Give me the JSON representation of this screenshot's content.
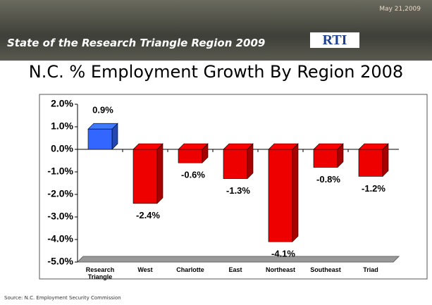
{
  "slide": {
    "banner_title": "State of the Research Triangle Region 2009",
    "date": "May 21,2009",
    "logo": "RTI"
  },
  "chart_data": {
    "type": "bar",
    "title": "N.C. % Employment Growth By Region 2008",
    "categories": [
      "Research Triangle",
      "West",
      "Charlotte",
      "East",
      "Northeast",
      "Southeast",
      "Triad"
    ],
    "values": [
      0.9,
      -2.4,
      -0.6,
      -1.3,
      -4.1,
      -0.8,
      -1.2
    ],
    "value_labels": [
      "0.9%",
      "-2.4%",
      "-0.6%",
      "-1.3%",
      "-4.1%",
      "-0.8%",
      "-1.2%"
    ],
    "colors": [
      "#3366ff",
      "#ee0000",
      "#ee0000",
      "#ee0000",
      "#ee0000",
      "#ee0000",
      "#ee0000"
    ],
    "ylim": [
      -5,
      2
    ],
    "yticks": [
      {
        "value": 2,
        "label": "2.0%"
      },
      {
        "value": 1,
        "label": "1.0%"
      },
      {
        "value": 0,
        "label": "0.0%"
      },
      {
        "value": -1,
        "label": "-1.0%"
      },
      {
        "value": -2,
        "label": "-2.0%"
      },
      {
        "value": -3,
        "label": "-3.0%"
      },
      {
        "value": -4,
        "label": "-4.0%"
      },
      {
        "value": -5,
        "label": "-5.0%"
      }
    ],
    "grid": false,
    "source": "Source: N.C. Employment Security Commission"
  }
}
